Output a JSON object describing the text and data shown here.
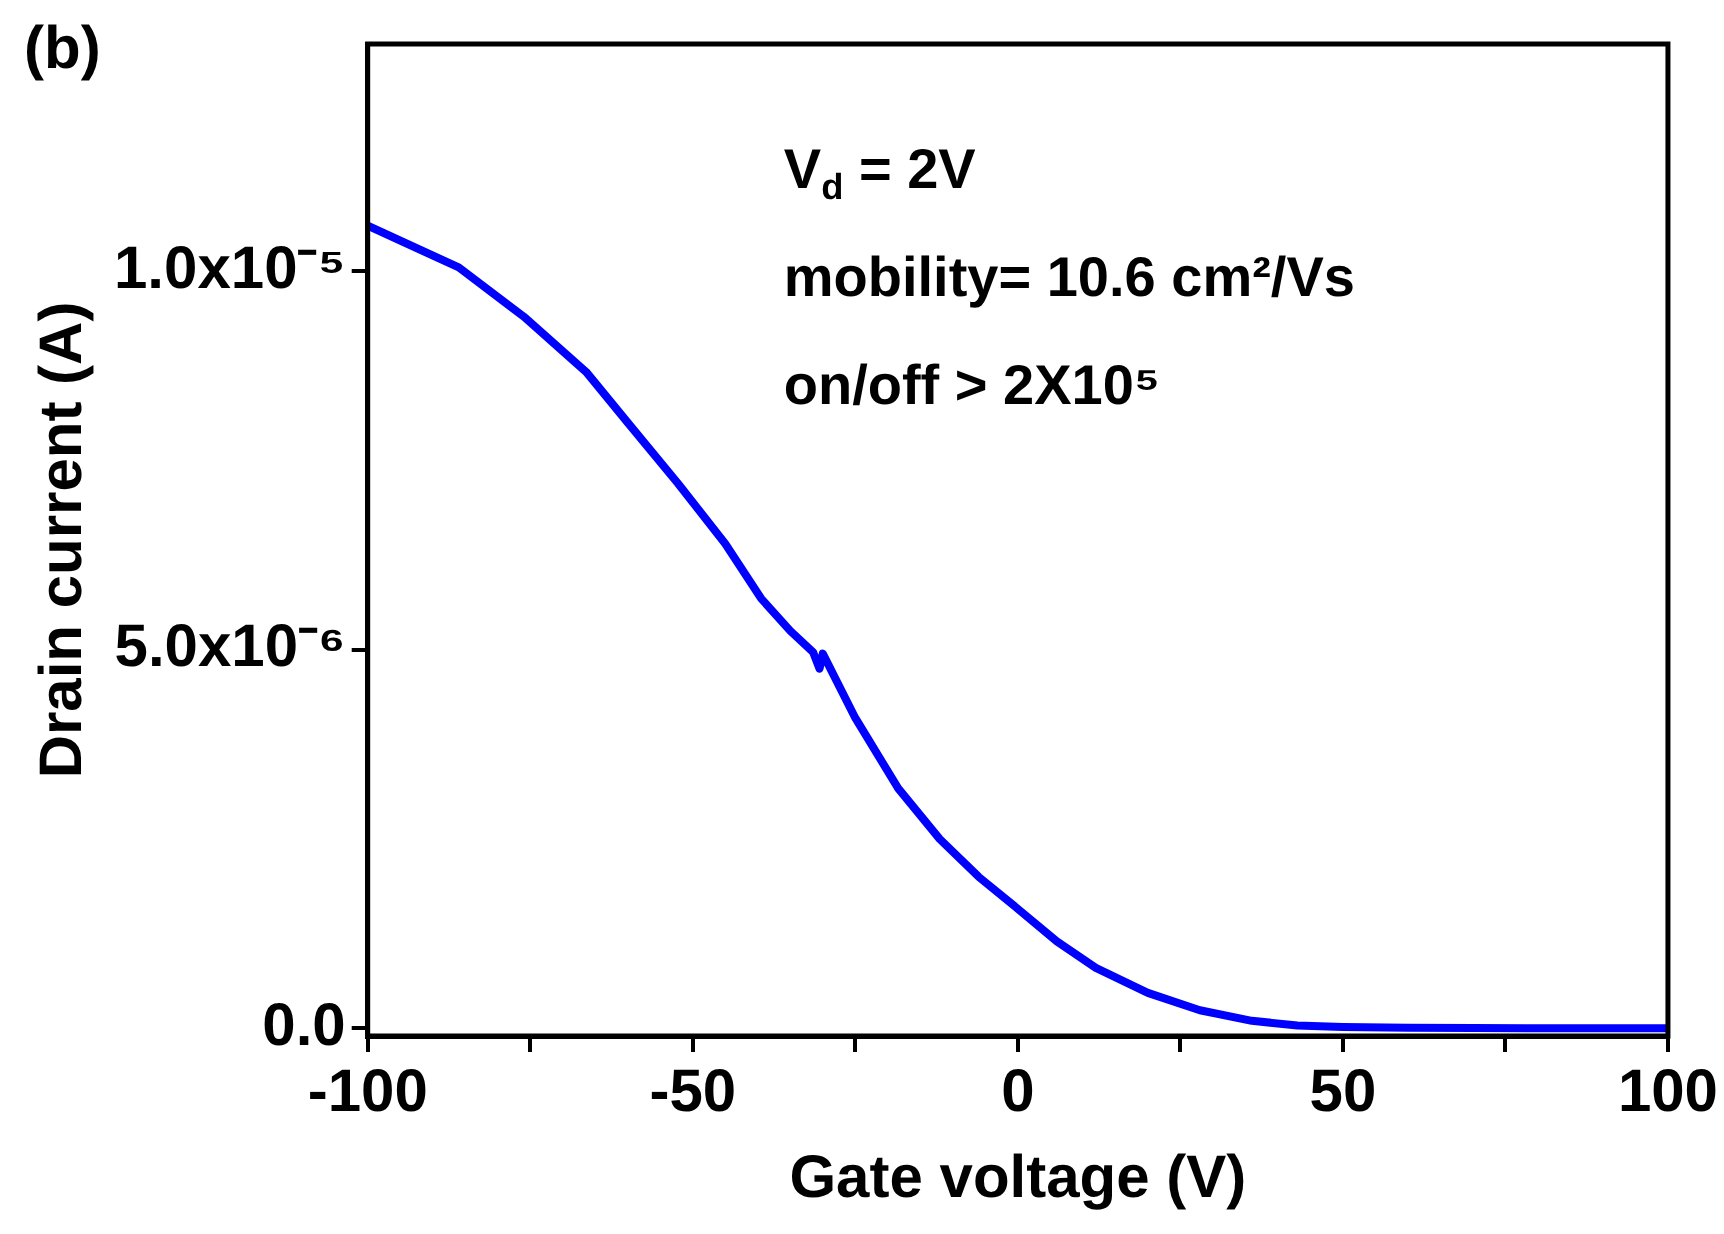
{
  "chart_data": {
    "type": "line",
    "title": "(b)",
    "xlabel": "Gate voltage (V)",
    "ylabel": "Drain current (A)",
    "annotations": [
      "V$_{d}$ = 2V",
      "mobility= 10.6 cm²/Vs",
      "on/off > 2X10⁵"
    ],
    "x": [
      -100,
      -86,
      -76,
      -66.4,
      -60,
      -52.3,
      -45,
      -39.5,
      -35,
      -31.5,
      -30.5,
      -30,
      -25,
      -18.4,
      -12,
      -6,
      -0.3,
      6,
      12,
      20,
      28,
      36,
      43,
      50,
      60,
      70,
      80,
      90,
      100
    ],
    "series": [
      {
        "color": "#0000ff",
        "values": [
          1.06e-05,
          1.005e-05,
          9.4e-06,
          8.67e-06,
          8e-06,
          7.2e-06,
          6.4e-06,
          5.68e-06,
          5.25e-06,
          4.97e-06,
          4.75e-06,
          4.95e-06,
          4.1e-06,
          3.17e-06,
          2.5e-06,
          2e-06,
          1.6e-06,
          1.15e-06,
          8e-07,
          4.7e-07,
          2.4e-07,
          1e-07,
          4e-08,
          2e-08,
          1e-08,
          5e-09,
          3e-09,
          2e-09,
          1e-09
        ]
      }
    ],
    "xlim": [
      -100,
      100
    ],
    "xticks": [
      -100,
      {
        "value": -75,
        "label": null
      },
      -50,
      {
        "value": -25,
        "label": null
      },
      0,
      {
        "value": 25,
        "label": null
      },
      50,
      {
        "value": 75,
        "label": null
      },
      100
    ],
    "ylim": [
      -1e-07,
      1.3e-05
    ],
    "yticks": [
      {
        "value": 0,
        "label": "0.0"
      },
      {
        "value": 5e-06,
        "label": "5.0x10⁻⁶"
      },
      {
        "value": 1e-05,
        "label": "1.0x10⁻⁵"
      }
    ],
    "grid": false,
    "legend": false,
    "marker": "none",
    "line_style": "solid"
  }
}
